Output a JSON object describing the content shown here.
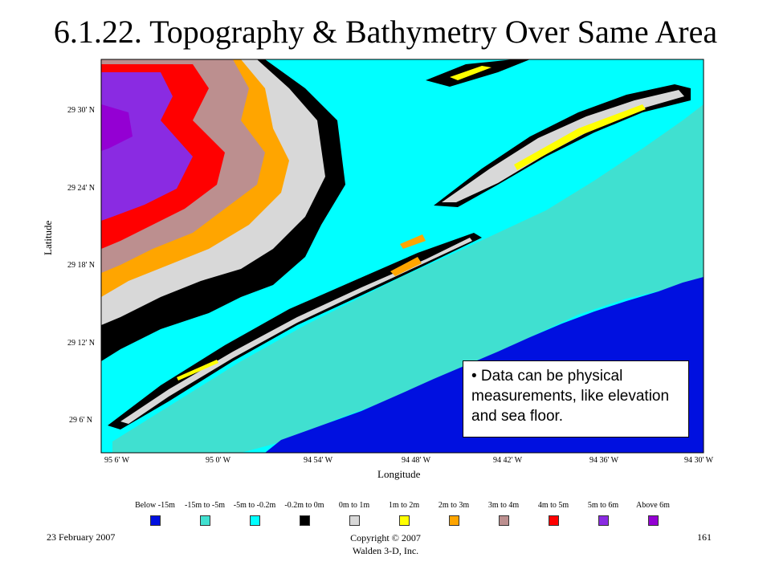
{
  "slide": {
    "title": "6.1.22. Topography & Bathymetry Over Same Area",
    "note": "• Data can be physical measurements, like elevation and sea floor.",
    "footer_date": "23 February 2007",
    "footer_copyright_line1": "Copyright © 2007",
    "footer_copyright_line2": "Walden 3-D, Inc.",
    "page_number": "161"
  },
  "map": {
    "xlabel": "Longitude",
    "ylabel": "Latitude",
    "lat_ticks": [
      "29 30' N",
      "29 24' N",
      "29 18' N",
      "29 12' N",
      "29 6' N"
    ],
    "lon_ticks": [
      "95 6' W",
      "95 0' W",
      "94 54' W",
      "94 48' W",
      "94 42' W",
      "94 36' W",
      "94 30' W"
    ],
    "colors": {
      "deep": "#0010e0",
      "mid": "#40e0d0",
      "shallow": "#00ffff",
      "near_zero": "#000000",
      "low": "#d8d8d8",
      "y1": "#ffff00",
      "y2": "#ffa500",
      "y3": "#bc8f8f",
      "y4": "#ff0000",
      "y5": "#8a2be2",
      "y6": "#9400d3"
    }
  },
  "legend": [
    {
      "label": "Below -15m",
      "color": "#0010e0"
    },
    {
      "label": "-15m to -5m",
      "color": "#40e0d0"
    },
    {
      "label": "-5m to -0.2m",
      "color": "#00ffff"
    },
    {
      "label": "-0.2m to 0m",
      "color": "#000000"
    },
    {
      "label": "0m to 1m",
      "color": "#d8d8d8"
    },
    {
      "label": "1m to 2m",
      "color": "#ffff00"
    },
    {
      "label": "2m to 3m",
      "color": "#ffa500"
    },
    {
      "label": "3m to 4m",
      "color": "#bc8f8f"
    },
    {
      "label": "4m to 5m",
      "color": "#ff0000"
    },
    {
      "label": "5m to 6m",
      "color": "#8a2be2"
    },
    {
      "label": "Above 6m",
      "color": "#9400d3"
    }
  ]
}
